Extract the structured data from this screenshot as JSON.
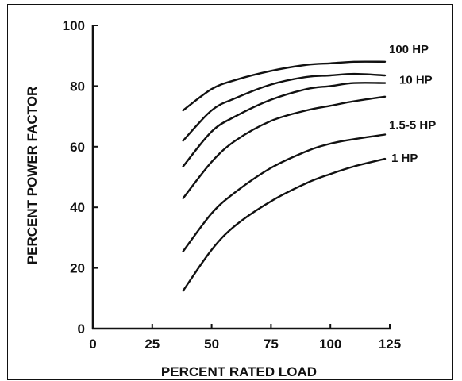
{
  "chart_data": {
    "type": "line",
    "title": "",
    "xlabel": "PERCENT RATED LOAD",
    "ylabel": "PERCENT POWER FACTOR",
    "xlim": [
      0,
      125
    ],
    "ylim": [
      0,
      100
    ],
    "x_ticks": [
      "0",
      "25",
      "50",
      "75",
      "100",
      "125"
    ],
    "y_ticks": [
      "0",
      "20",
      "40",
      "60",
      "80",
      "100"
    ],
    "grid": false,
    "legend": "none",
    "x": [
      38,
      50,
      60,
      75,
      90,
      100,
      110,
      123
    ],
    "series": [
      {
        "name": "100 HP",
        "values": [
          72,
          79,
          82,
          85,
          87,
          87.5,
          88,
          88
        ]
      },
      {
        "values": [
          62,
          72,
          76,
          80.5,
          83,
          83.5,
          84,
          83.5
        ]
      },
      {
        "name": "10 HP",
        "values": [
          53.5,
          65,
          70,
          75.5,
          79,
          80,
          81,
          81
        ]
      },
      {
        "values": [
          43,
          55,
          62,
          68.5,
          72,
          73.5,
          75,
          76.5
        ]
      },
      {
        "name": "1.5-5 HP",
        "values": [
          25.5,
          38,
          45,
          53,
          58.5,
          61,
          62.5,
          64
        ]
      },
      {
        "name": "1 HP",
        "values": [
          12.5,
          26,
          34,
          42,
          48,
          51,
          53.5,
          56
        ]
      }
    ]
  }
}
